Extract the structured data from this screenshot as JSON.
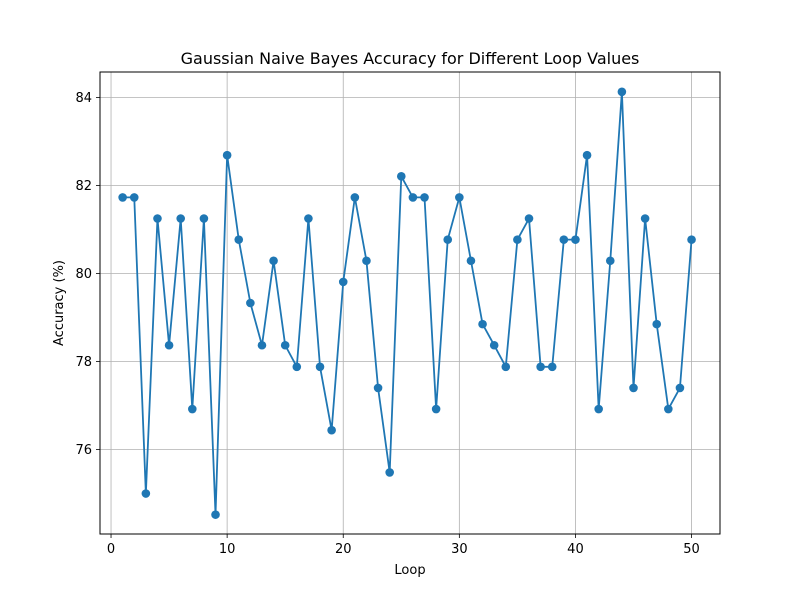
{
  "chart_data": {
    "type": "line",
    "title": "Gaussian Naive Bayes Accuracy for Different Loop Values",
    "xlabel": "Loop",
    "ylabel": "Accuracy (%)",
    "xlim": [
      -0.95,
      52.45
    ],
    "ylim": [
      74.08,
      84.58
    ],
    "xticks": [
      0,
      10,
      20,
      30,
      40,
      50
    ],
    "yticks": [
      76,
      78,
      80,
      82,
      84
    ],
    "grid": true,
    "legend": "none",
    "series": [
      {
        "color": "#1f77b4",
        "marker": "circle",
        "x": [
          1,
          2,
          3,
          4,
          5,
          6,
          7,
          8,
          9,
          10,
          11,
          12,
          13,
          14,
          15,
          16,
          17,
          18,
          19,
          20,
          21,
          22,
          23,
          24,
          25,
          26,
          27,
          28,
          29,
          30,
          31,
          32,
          33,
          34,
          35,
          36,
          37,
          38,
          39,
          40,
          41,
          42,
          43,
          44,
          45,
          46,
          47,
          48,
          49,
          50
        ],
        "y": [
          81.73,
          81.73,
          75.0,
          81.25,
          78.37,
          81.25,
          76.92,
          81.25,
          74.52,
          82.69,
          80.77,
          79.33,
          78.37,
          80.29,
          78.37,
          77.88,
          81.25,
          77.88,
          76.44,
          79.81,
          81.73,
          80.29,
          77.4,
          75.48,
          82.21,
          81.73,
          81.73,
          76.92,
          80.77,
          81.73,
          80.29,
          78.85,
          78.37,
          77.88,
          80.77,
          81.25,
          77.88,
          77.88,
          80.77,
          80.77,
          82.69,
          76.92,
          80.29,
          84.13,
          77.4,
          81.25,
          78.85,
          76.92,
          77.4,
          80.77
        ]
      }
    ]
  }
}
